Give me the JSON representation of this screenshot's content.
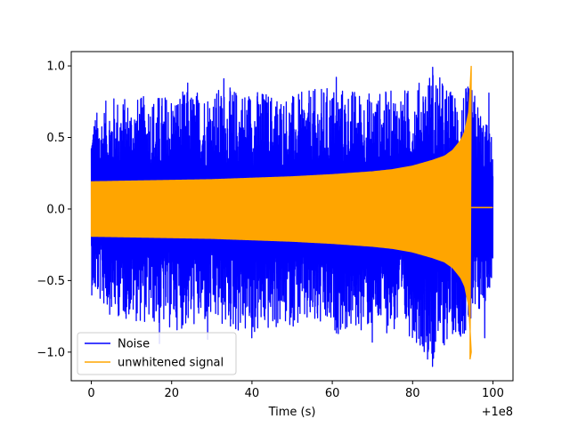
{
  "chart_data": {
    "type": "line",
    "title": "",
    "xlabel": "Time (s)",
    "ylabel": "",
    "x_offset_label": "+1e8",
    "xlim": [
      -5.0,
      105.0
    ],
    "ylim": [
      -1.2,
      1.1
    ],
    "xticks": [
      0,
      20,
      40,
      60,
      80,
      100
    ],
    "xtick_labels": [
      "0",
      "20",
      "40",
      "60",
      "80",
      "100"
    ],
    "yticks": [
      -1.0,
      -0.5,
      0.0,
      0.5,
      1.0
    ],
    "ytick_labels": [
      "−1.0",
      "−0.5",
      "0.0",
      "0.5",
      "1.0"
    ],
    "grid": false,
    "legend_position": "lower-left",
    "series": [
      {
        "name": "Noise",
        "color": "#0000ff",
        "x_range": [
          0,
          100
        ],
        "envelope_x": [
          0,
          5,
          10,
          20,
          30,
          40,
          50,
          60,
          70,
          80,
          85,
          90,
          93,
          95,
          97,
          100
        ],
        "envelope_upper": [
          0.65,
          0.8,
          0.78,
          0.82,
          0.85,
          0.85,
          0.8,
          0.87,
          0.82,
          0.85,
          0.99,
          0.82,
          0.86,
          0.85,
          0.7,
          0.5
        ],
        "envelope_lower": [
          -0.6,
          -0.75,
          -0.78,
          -0.85,
          -0.82,
          -0.9,
          -0.82,
          -0.88,
          -0.85,
          -0.9,
          -1.1,
          -0.88,
          -0.9,
          -0.9,
          -0.75,
          -0.5
        ],
        "peaks": [
          [
            24,
            0.88
          ],
          [
            33,
            0.91
          ],
          [
            61,
            0.92
          ],
          [
            85,
            0.99
          ],
          [
            99,
            0.81
          ],
          [
            17,
            -0.94
          ],
          [
            29,
            -0.91
          ],
          [
            40,
            -0.9
          ],
          [
            70,
            -0.93
          ],
          [
            85,
            -1.1
          ],
          [
            98,
            -0.9
          ]
        ]
      },
      {
        "name": "unwhitened signal",
        "color": "#ffa500",
        "envelope_x": [
          0,
          10,
          20,
          30,
          40,
          50,
          60,
          70,
          75,
          80,
          85,
          88,
          90,
          92,
          93,
          94,
          94.6
        ],
        "envelope": [
          0.19,
          0.195,
          0.2,
          0.205,
          0.215,
          0.225,
          0.24,
          0.26,
          0.275,
          0.3,
          0.34,
          0.37,
          0.41,
          0.48,
          0.54,
          0.68,
          1.0
        ],
        "chirp_end_x": 94.6,
        "chirp_peak": [
          94.6,
          1.0
        ],
        "chirp_trough": [
          94.3,
          -1.05
        ],
        "post_merger_level": 0.01
      }
    ]
  }
}
